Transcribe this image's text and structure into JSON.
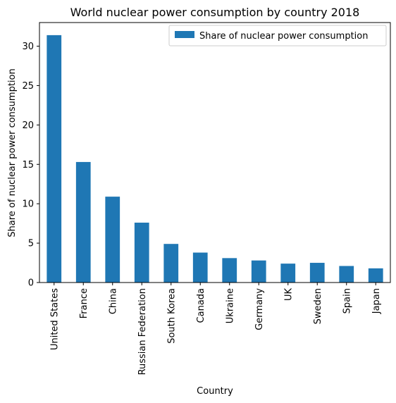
{
  "chart_data": {
    "type": "bar",
    "title": "World nuclear power consumption by country 2018",
    "xlabel": "Country",
    "ylabel": "Share of nuclear power consumption",
    "categories": [
      "United States",
      "France",
      "China",
      "Russian Federation",
      "South Korea",
      "Canada",
      "Ukraine",
      "Germany",
      "UK",
      "Sweden",
      "Spain",
      "Japan"
    ],
    "series": [
      {
        "name": "Share of nuclear power consumption",
        "values": [
          31.4,
          15.3,
          10.9,
          7.6,
          4.9,
          3.8,
          3.1,
          2.8,
          2.4,
          2.5,
          2.1,
          1.8
        ],
        "color": "#1f77b4"
      }
    ],
    "yticks": [
      0,
      5,
      10,
      15,
      20,
      25,
      30
    ],
    "ylim": [
      0,
      33
    ],
    "grid": false,
    "legend_position": "top-right"
  }
}
